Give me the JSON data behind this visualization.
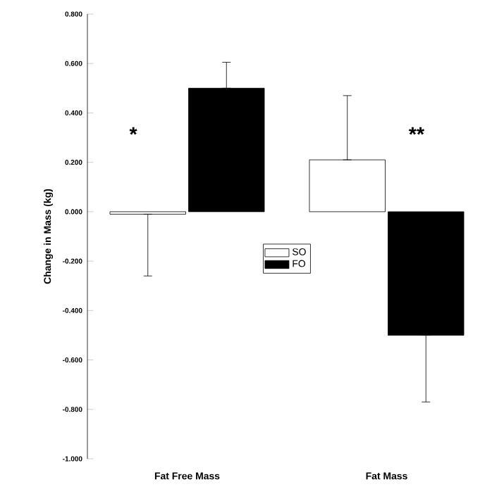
{
  "chart_data": {
    "type": "bar",
    "ylabel": "Change in Mass (kg)",
    "categories": [
      "Fat Free Mass",
      "Fat Mass"
    ],
    "series": [
      {
        "name": "SO",
        "color": "#ffffff",
        "values": [
          -0.01,
          0.21
        ],
        "errors": [
          [
            -0.26,
            -0.01
          ],
          [
            0.21,
            0.47
          ]
        ]
      },
      {
        "name": "FO",
        "color": "#000000",
        "values": [
          0.5,
          -0.5
        ],
        "errors": [
          [
            0.5,
            0.605
          ],
          [
            -0.77,
            -0.5
          ]
        ]
      }
    ],
    "ylim": [
      -1.0,
      0.8
    ],
    "yticks": [
      {
        "value": -1.0,
        "label": "-1.000"
      },
      {
        "value": -0.8,
        "label": "-0.800"
      },
      {
        "value": -0.6,
        "label": "-0.600"
      },
      {
        "value": -0.4,
        "label": "-0.400"
      },
      {
        "value": -0.2,
        "label": "-0.200"
      },
      {
        "value": 0.0,
        "label": "0.000"
      },
      {
        "value": 0.2,
        "label": "0.200"
      },
      {
        "value": 0.4,
        "label": "0.400"
      },
      {
        "value": 0.6,
        "label": "0.600"
      },
      {
        "value": 0.8,
        "label": "0.800"
      }
    ],
    "annotations": [
      "*",
      "**"
    ],
    "legend": "center",
    "grid": false
  }
}
